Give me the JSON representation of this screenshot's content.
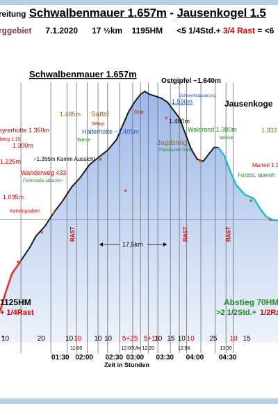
{
  "header": {
    "title_prefix": "reitung",
    "title_from": "Schwalbenmauer 1.657m",
    "title_sep": "-",
    "title_to": "Jausenkogel 1.5",
    "region": "rggebiet",
    "date": "7.1.2020",
    "distance": "17 ½km",
    "elevation": "1195HM",
    "time_part1": "<5 1/4Std.+",
    "time_part2": "3/4 Rast",
    "time_part3": "= <6"
  },
  "colors": {
    "sky": "#ffffff",
    "fill_top": "#9cb7e8",
    "fill_bottom": "#eef3fb",
    "profile_line": "#1a1a1a",
    "ascent_line": "#e0302a",
    "descent_line": "#23c1c1",
    "gridline": "#6a6a6a",
    "red_text": "#e00000",
    "green_text": "#1f8a1f",
    "blue_text": "#1a56c8",
    "brown_text": "#8b6d1f"
  },
  "chart_data": {
    "type": "area",
    "title": "Schwalbenmauer 1.657m",
    "xlabel": "Zeit in Stunden",
    "ylabel": "",
    "profile": [
      [
        0.0,
        1100
      ],
      [
        0.1,
        1150
      ],
      [
        0.2,
        1195
      ],
      [
        0.35,
        1228
      ],
      [
        0.5,
        1262
      ],
      [
        0.6,
        1290
      ],
      [
        0.75,
        1315
      ],
      [
        0.9,
        1350
      ],
      [
        1.05,
        1380
      ],
      [
        1.2,
        1415
      ],
      [
        1.35,
        1440
      ],
      [
        1.5,
        1472
      ],
      [
        1.65,
        1490
      ],
      [
        1.8,
        1508
      ],
      [
        1.95,
        1535
      ],
      [
        2.05,
        1570
      ],
      [
        2.15,
        1605
      ],
      [
        2.25,
        1630
      ],
      [
        2.35,
        1650
      ],
      [
        2.42,
        1657
      ],
      [
        2.5,
        1650
      ],
      [
        2.6,
        1645
      ],
      [
        2.7,
        1640
      ],
      [
        2.8,
        1630
      ],
      [
        2.9,
        1610
      ],
      [
        3.0,
        1590
      ],
      [
        3.1,
        1550
      ],
      [
        3.2,
        1510
      ],
      [
        3.3,
        1485
      ],
      [
        3.4,
        1480
      ],
      [
        3.5,
        1500
      ],
      [
        3.58,
        1515
      ],
      [
        3.65,
        1515
      ],
      [
        3.75,
        1495
      ],
      [
        3.85,
        1455
      ],
      [
        3.95,
        1420
      ],
      [
        4.1,
        1395
      ],
      [
        4.25,
        1385
      ],
      [
        4.35,
        1360
      ],
      [
        4.45,
        1340
      ],
      [
        4.55,
        1332
      ],
      [
        4.65,
        1330
      ]
    ],
    "xlim": [
      0,
      4.65
    ],
    "ylim": [
      1020,
      1700
    ],
    "ascent_end_x": 0.35,
    "descent_start_x": 3.65,
    "reference_line_elev": 1332,
    "x_ticks": [
      {
        "x": 1.0,
        "label": "01:30"
      },
      {
        "x": 1.4,
        "label": "02:00"
      },
      {
        "x": 1.9,
        "label": "02:30"
      },
      {
        "x": 2.25,
        "label": "03:00"
      },
      {
        "x": 2.75,
        "label": "03:30"
      },
      {
        "x": 3.25,
        "label": "04:00"
      },
      {
        "x": 3.8,
        "label": "04:30"
      }
    ],
    "clock_labels": [
      {
        "x": 1.2,
        "label": "11:00"
      },
      {
        "x": 2.05,
        "label": "12:00Uhr"
      },
      {
        "x": 2.4,
        "label": "12:20"
      },
      {
        "x": 3.0,
        "label": "12:56"
      },
      {
        "x": 3.7,
        "label": "13:30"
      }
    ],
    "segment_minutes": [
      {
        "x": 0.0,
        "label": "10",
        "color": "black"
      },
      {
        "x": 0.6,
        "label": "20",
        "color": "black"
      },
      {
        "x": 1.07,
        "label": "10",
        "color": "black"
      },
      {
        "x": 1.21,
        "label": "10",
        "color": "red"
      },
      {
        "x": 1.55,
        "label": "10",
        "color": "black"
      },
      {
        "x": 1.72,
        "label": "10",
        "color": "black"
      },
      {
        "x": 2.02,
        "label": "5+25",
        "color": "red"
      },
      {
        "x": 2.38,
        "label": "5+15",
        "color": "red"
      },
      {
        "x": 2.56,
        "label": "10",
        "color": "black"
      },
      {
        "x": 2.77,
        "label": "15",
        "color": "black"
      },
      {
        "x": 2.95,
        "label": "10",
        "color": "black"
      },
      {
        "x": 3.1,
        "label": "10",
        "color": "red"
      },
      {
        "x": 3.48,
        "label": "25",
        "color": "black"
      },
      {
        "x": 3.82,
        "label": "10",
        "color": "red"
      },
      {
        "x": 4.04,
        "label": "15",
        "color": "black"
      }
    ],
    "grid_x": [
      0.35,
      0.85,
      1.12,
      1.28,
      1.46,
      1.64,
      1.8,
      2.0,
      2.22,
      2.35,
      2.48,
      2.64,
      2.85,
      3.0,
      3.12,
      3.36,
      3.6,
      3.78,
      3.9
    ],
    "rast_x": [
      1.21,
      3.1,
      3.82
    ],
    "rast_label": "RAST",
    "points": [
      {
        "x": 0.9,
        "y": 1350,
        "text": "eyrerhütte 1.350m",
        "color": "#e00000"
      },
      {
        "x": 0.7,
        "y": 1300,
        "text": "1.300m",
        "color": "#e00000"
      },
      {
        "x": 0.3,
        "y": 1225,
        "text": "1.225m",
        "color": "#e00000"
      },
      {
        "x": 0.05,
        "y": 1035,
        "text": "1.035m",
        "color": "#e00000"
      },
      {
        "x": 1.68,
        "y": 1485,
        "text": "1.485m",
        "color": "#8b6d1f"
      },
      {
        "x": 2.1,
        "y": 1405,
        "text": "Halterhütte ~1.405m",
        "color": "#1a56c8"
      },
      {
        "x": 2.78,
        "y": 1590,
        "text": "1.590m",
        "color": "#1a56c8"
      },
      {
        "x": 3.35,
        "y": 1480,
        "text": "1.480m",
        "color": "#000000"
      },
      {
        "x": 4.2,
        "y": 1380,
        "text": "Waldrand 1.380m",
        "color": "#1f8a1f"
      },
      {
        "x": 4.52,
        "y": 1332,
        "text": "1.332",
        "color": "#8b6d1f"
      }
    ],
    "annotations": {
      "sattel": "Sattel",
      "rast5": "5Rast",
      "wiese1": "Wiese",
      "grat": "Grat",
      "ostgipfel": "Ostgipfel ~1.640m",
      "schneefeld": "Schneefeldquerung",
      "jausenkogel": "Jausenkoge",
      "wiese2": "Wiese",
      "jagdsteig": "Jagdsteig",
      "pfadspuren": "Pfadspuren Trandl",
      "marterl": "Marterl 1.2",
      "forststr": "Forstst. quereh",
      "kamm": "~1.265m Kamm Aussicht",
      "wanderweg": "Wanderweg 433",
      "forststrasse": "Forststraße abkürzen",
      "katzengraben": "Katzengraben",
      "berg": "berg 1:15",
      "distance": "17,5km",
      "ascent_hm": "1125HM",
      "ascent_rast": "+ 1/4Rast",
      "descent_hm": "Abstieg 70HM",
      "descent_time": ">2 1/2Std.+",
      "descent_rast": "1/2Ra"
    }
  }
}
